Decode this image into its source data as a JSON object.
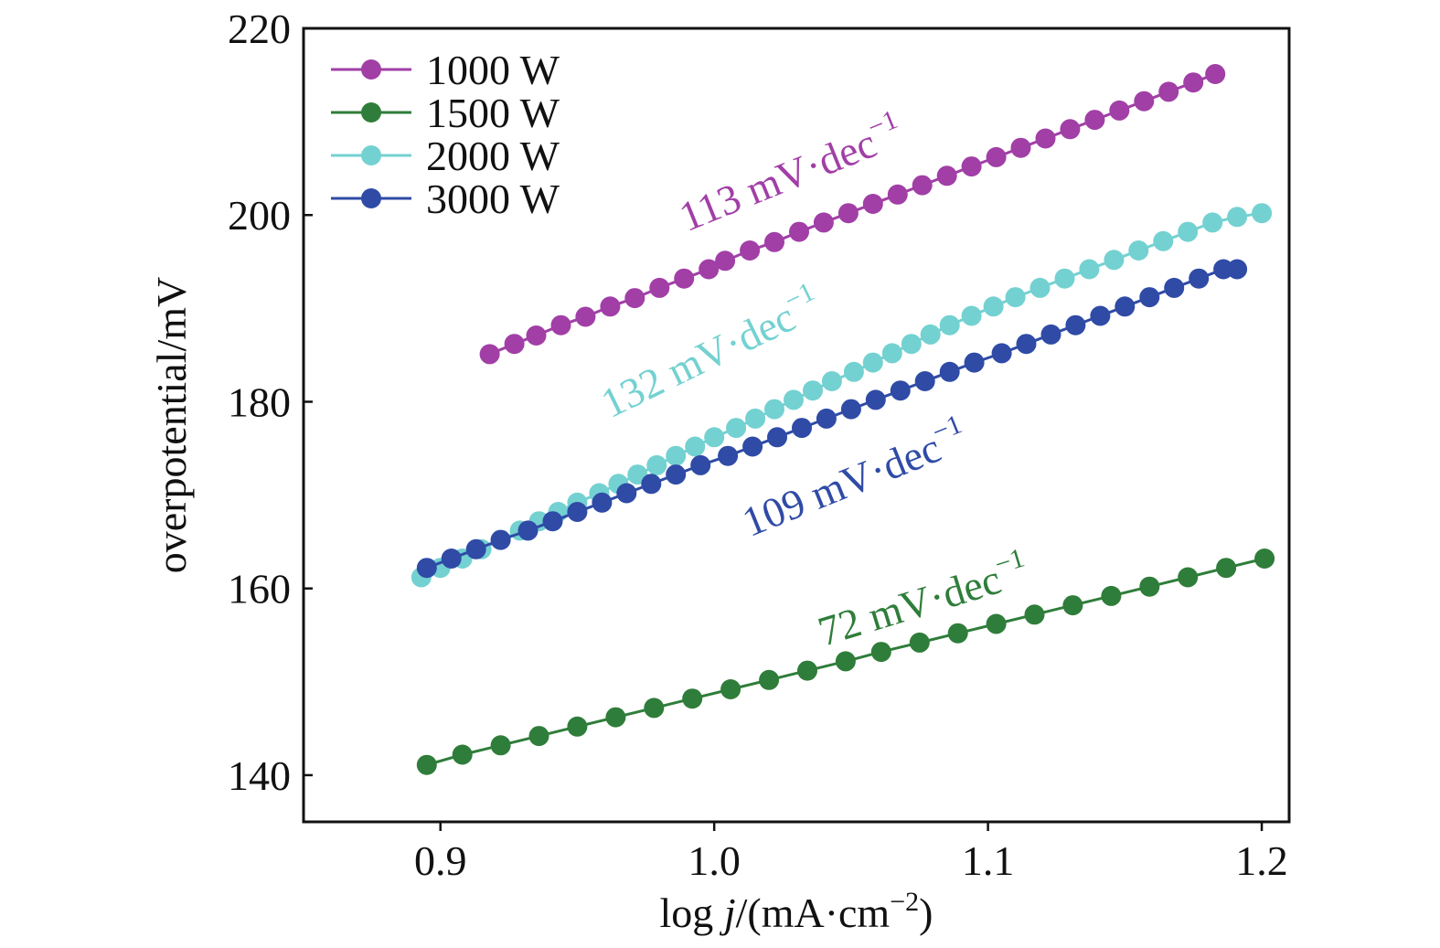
{
  "chart_data": {
    "type": "line",
    "title": "",
    "xlabel": {
      "pre": "log ",
      "italic": "j",
      "post": "/(mA·cm",
      "sup": "−2",
      "close": ")"
    },
    "ylabel": "overpotential/mV",
    "xlim": [
      0.85,
      1.21
    ],
    "ylim": [
      135,
      220
    ],
    "x_ticks": [
      0.9,
      1.0,
      1.1,
      1.2
    ],
    "x_tick_labels": [
      "0.9",
      "1.0",
      "1.1",
      "1.2"
    ],
    "y_ticks": [
      140,
      160,
      180,
      200,
      220
    ],
    "y_tick_labels": [
      "140",
      "160",
      "180",
      "200",
      "220"
    ],
    "grid": false,
    "legend_position": "top-left",
    "series": [
      {
        "name": "1000 W",
        "color": "#a13fa6",
        "points": [
          [
            0.918,
            185.1
          ],
          [
            0.927,
            186.2
          ],
          [
            0.935,
            187.1
          ],
          [
            0.944,
            188.2
          ],
          [
            0.953,
            189.1
          ],
          [
            0.962,
            190.2
          ],
          [
            0.971,
            191.1
          ],
          [
            0.98,
            192.2
          ],
          [
            0.989,
            193.2
          ],
          [
            0.998,
            194.2
          ],
          [
            1.004,
            195.1
          ],
          [
            1.013,
            196.2
          ],
          [
            1.022,
            197.1
          ],
          [
            1.031,
            198.2
          ],
          [
            1.04,
            199.2
          ],
          [
            1.049,
            200.2
          ],
          [
            1.058,
            201.2
          ],
          [
            1.067,
            202.2
          ],
          [
            1.076,
            203.2
          ],
          [
            1.085,
            204.2
          ],
          [
            1.094,
            205.2
          ],
          [
            1.103,
            206.2
          ],
          [
            1.112,
            207.2
          ],
          [
            1.121,
            208.2
          ],
          [
            1.13,
            209.2
          ],
          [
            1.139,
            210.2
          ],
          [
            1.148,
            211.2
          ],
          [
            1.157,
            212.2
          ],
          [
            1.166,
            213.2
          ],
          [
            1.175,
            214.2
          ],
          [
            1.183,
            215.1
          ]
        ]
      },
      {
        "name": "1500 W",
        "color": "#2f7d3a",
        "points": [
          [
            0.895,
            141.1
          ],
          [
            0.908,
            142.2
          ],
          [
            0.922,
            143.2
          ],
          [
            0.936,
            144.2
          ],
          [
            0.95,
            145.2
          ],
          [
            0.964,
            146.2
          ],
          [
            0.978,
            147.2
          ],
          [
            0.992,
            148.2
          ],
          [
            1.006,
            149.2
          ],
          [
            1.02,
            150.2
          ],
          [
            1.034,
            151.2
          ],
          [
            1.048,
            152.2
          ],
          [
            1.061,
            153.2
          ],
          [
            1.075,
            154.2
          ],
          [
            1.089,
            155.2
          ],
          [
            1.103,
            156.2
          ],
          [
            1.117,
            157.2
          ],
          [
            1.131,
            158.2
          ],
          [
            1.145,
            159.2
          ],
          [
            1.159,
            160.2
          ],
          [
            1.173,
            161.2
          ],
          [
            1.187,
            162.2
          ],
          [
            1.201,
            163.2
          ]
        ]
      },
      {
        "name": "2000 W",
        "color": "#74d1d1",
        "points": [
          [
            0.893,
            161.2
          ],
          [
            0.9,
            162.2
          ],
          [
            0.908,
            163.2
          ],
          [
            0.915,
            164.2
          ],
          [
            0.922,
            165.2
          ],
          [
            0.929,
            166.2
          ],
          [
            0.936,
            167.2
          ],
          [
            0.943,
            168.2
          ],
          [
            0.95,
            169.2
          ],
          [
            0.958,
            170.2
          ],
          [
            0.965,
            171.2
          ],
          [
            0.972,
            172.2
          ],
          [
            0.979,
            173.2
          ],
          [
            0.986,
            174.2
          ],
          [
            0.993,
            175.2
          ],
          [
            1.0,
            176.2
          ],
          [
            1.008,
            177.2
          ],
          [
            1.015,
            178.2
          ],
          [
            1.022,
            179.2
          ],
          [
            1.029,
            180.2
          ],
          [
            1.036,
            181.2
          ],
          [
            1.043,
            182.2
          ],
          [
            1.051,
            183.2
          ],
          [
            1.058,
            184.2
          ],
          [
            1.065,
            185.2
          ],
          [
            1.072,
            186.2
          ],
          [
            1.079,
            187.2
          ],
          [
            1.086,
            188.2
          ],
          [
            1.094,
            189.2
          ],
          [
            1.102,
            190.2
          ],
          [
            1.11,
            191.2
          ],
          [
            1.119,
            192.2
          ],
          [
            1.128,
            193.2
          ],
          [
            1.137,
            194.2
          ],
          [
            1.146,
            195.2
          ],
          [
            1.155,
            196.2
          ],
          [
            1.164,
            197.2
          ],
          [
            1.173,
            198.2
          ],
          [
            1.182,
            199.2
          ],
          [
            1.191,
            199.8
          ],
          [
            1.2,
            200.2
          ]
        ]
      },
      {
        "name": "3000 W",
        "color": "#2f4ba6",
        "points": [
          [
            0.895,
            162.2
          ],
          [
            0.904,
            163.2
          ],
          [
            0.913,
            164.2
          ],
          [
            0.922,
            165.2
          ],
          [
            0.932,
            166.2
          ],
          [
            0.941,
            167.2
          ],
          [
            0.95,
            168.2
          ],
          [
            0.959,
            169.2
          ],
          [
            0.968,
            170.2
          ],
          [
            0.977,
            171.2
          ],
          [
            0.986,
            172.2
          ],
          [
            0.995,
            173.2
          ],
          [
            1.005,
            174.2
          ],
          [
            1.014,
            175.2
          ],
          [
            1.023,
            176.2
          ],
          [
            1.032,
            177.2
          ],
          [
            1.041,
            178.2
          ],
          [
            1.05,
            179.2
          ],
          [
            1.059,
            180.2
          ],
          [
            1.068,
            181.2
          ],
          [
            1.077,
            182.2
          ],
          [
            1.086,
            183.2
          ],
          [
            1.095,
            184.2
          ],
          [
            1.105,
            185.2
          ],
          [
            1.114,
            186.2
          ],
          [
            1.123,
            187.2
          ],
          [
            1.132,
            188.2
          ],
          [
            1.141,
            189.2
          ],
          [
            1.15,
            190.2
          ],
          [
            1.159,
            191.2
          ],
          [
            1.168,
            192.2
          ],
          [
            1.177,
            193.2
          ],
          [
            1.186,
            194.2
          ],
          [
            1.191,
            194.2
          ]
        ]
      }
    ],
    "annotations": [
      {
        "series": "1000 W",
        "text": "113 mV·dec",
        "sup": "−1",
        "x": 0.99,
        "y": 198.2,
        "angle": -22
      },
      {
        "series": "2000 W",
        "text": "132 mV·dec",
        "sup": "−1",
        "x": 0.962,
        "y": 178.2,
        "angle": -26
      },
      {
        "series": "3000 W",
        "text": "109 mV·dec",
        "sup": "−1",
        "x": 1.013,
        "y": 165.5,
        "angle": -22
      },
      {
        "series": "1500 W",
        "text": "72 mV·dec",
        "sup": "−1",
        "x": 1.04,
        "y": 153.8,
        "angle": -17
      }
    ]
  }
}
